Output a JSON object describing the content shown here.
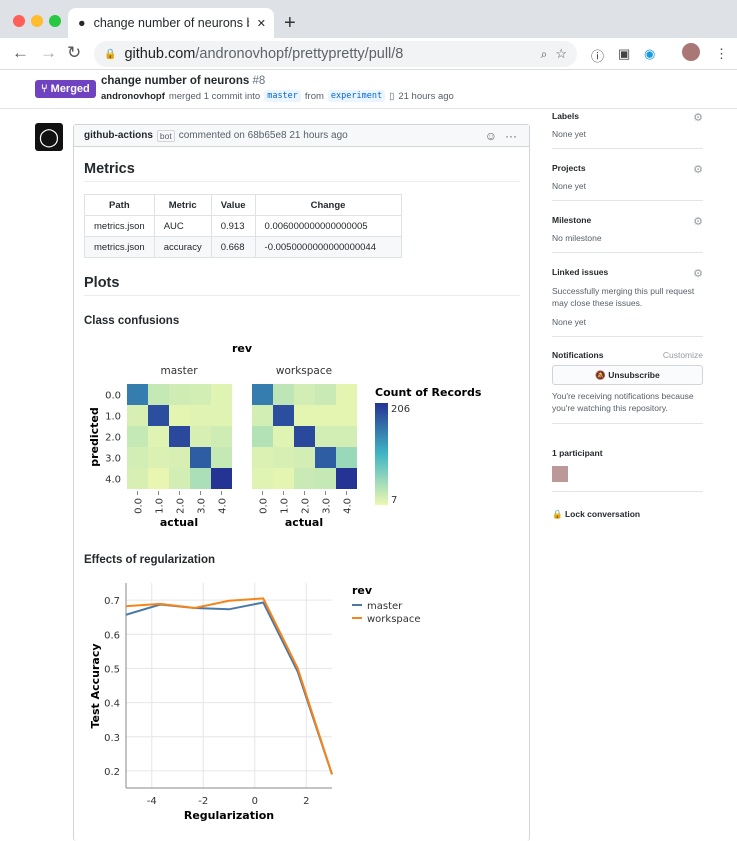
{
  "browser": {
    "tab_title": "change number of neurons by a",
    "url_host": "github.com",
    "url_path": "/andronovhopf/prettypretty/pull/8"
  },
  "pr": {
    "state": "Merged",
    "title": "change number of neurons",
    "number": "#8",
    "author": "andronovhopf",
    "action": "merged 1 commit into",
    "base": "master",
    "from": "from",
    "head": "experiment",
    "time": "21 hours ago"
  },
  "comment": {
    "author": "github-actions",
    "badge": "bot",
    "text": "commented on 68b65e8 21 hours ago",
    "metrics_heading": "Metrics",
    "table": {
      "headers": [
        "Path",
        "Metric",
        "Value",
        "Change"
      ],
      "rows": [
        [
          "metrics.json",
          "AUC",
          "0.913",
          "0.006000000000000005"
        ],
        [
          "metrics.json",
          "accuracy",
          "0.668",
          "-0.0050000000000000044"
        ]
      ]
    },
    "plots_heading": "Plots",
    "confusion_heading": "Class confusions",
    "regularization_heading": "Effects of regularization"
  },
  "sidebar": {
    "labels": {
      "title": "Labels",
      "value": "None yet"
    },
    "projects": {
      "title": "Projects",
      "value": "None yet"
    },
    "milestone": {
      "title": "Milestone",
      "value": "No milestone"
    },
    "linked": {
      "title": "Linked issues",
      "desc": "Successfully merging this pull request may close these issues.",
      "value": "None yet"
    },
    "notifications": {
      "title": "Notifications",
      "customize": "Customize",
      "button": "Unsubscribe",
      "desc": "You're receiving notifications because you're watching this repository."
    },
    "participants": {
      "title": "1 participant"
    },
    "lock": "Lock conversation"
  },
  "chart_data": [
    {
      "type": "heatmap",
      "facet_title": "rev",
      "facets": [
        "master",
        "workspace"
      ],
      "xlabel": "actual",
      "ylabel": "predicted",
      "x_ticks": [
        "0.0",
        "1.0",
        "2.0",
        "3.0",
        "4.0"
      ],
      "y_ticks": [
        "0.0",
        "1.0",
        "2.0",
        "3.0",
        "4.0"
      ],
      "legend_title": "Count of Records",
      "color_range": [
        7,
        206
      ],
      "color_range_labels": [
        "7",
        "206"
      ],
      "colors": [
        "#edf8b1",
        "#41b6c4",
        "#253494"
      ],
      "values": {
        "master": [
          [
            150,
            30,
            25,
            22,
            15
          ],
          [
            20,
            185,
            12,
            14,
            15
          ],
          [
            30,
            15,
            190,
            20,
            25
          ],
          [
            22,
            18,
            20,
            175,
            30
          ],
          [
            20,
            10,
            22,
            45,
            206
          ]
        ],
        "workspace": [
          [
            150,
            35,
            22,
            28,
            12
          ],
          [
            22,
            185,
            12,
            12,
            12
          ],
          [
            40,
            15,
            190,
            22,
            22
          ],
          [
            18,
            20,
            22,
            175,
            55
          ],
          [
            15,
            12,
            28,
            30,
            206
          ]
        ]
      }
    },
    {
      "type": "line",
      "xlabel": "Regularization",
      "ylabel": "Test Accuracy",
      "legend_title": "rev",
      "legend": "top-right",
      "grid": true,
      "xlim": [
        -5,
        3
      ],
      "ylim": [
        0.15,
        0.75
      ],
      "x_ticks": [
        "-4",
        "-2",
        "0",
        "2"
      ],
      "y_ticks": [
        "0.2",
        "0.3",
        "0.4",
        "0.5",
        "0.6",
        "0.7"
      ],
      "x": [
        -5,
        -3.67,
        -2.33,
        -1,
        0.33,
        1.67,
        3
      ],
      "series": [
        {
          "name": "master",
          "color": "#4c78a8",
          "values": [
            0.657,
            0.687,
            0.677,
            0.673,
            0.693,
            0.49,
            0.19
          ]
        },
        {
          "name": "workspace",
          "color": "#f58518",
          "values": [
            0.682,
            0.689,
            0.677,
            0.698,
            0.705,
            0.5,
            0.19
          ]
        }
      ]
    }
  ]
}
